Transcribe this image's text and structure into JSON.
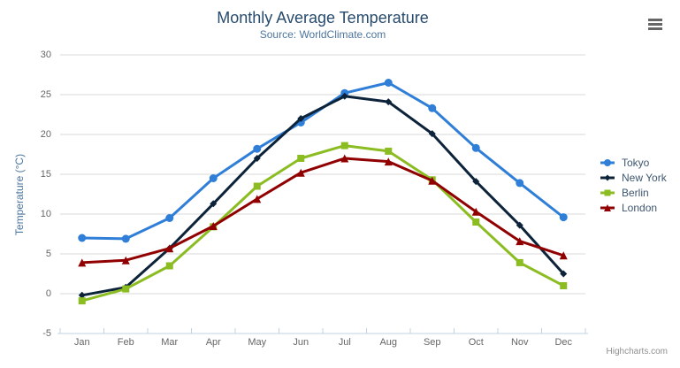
{
  "title": "Monthly Average Temperature",
  "subtitle": "Source: WorldClimate.com",
  "credits": "Highcharts.com",
  "export_menu_icon": "hamburger-icon",
  "chart_data": {
    "type": "line",
    "title": "Monthly Average Temperature",
    "subtitle": "Source: WorldClimate.com",
    "categories": [
      "Jan",
      "Feb",
      "Mar",
      "Apr",
      "May",
      "Jun",
      "Jul",
      "Aug",
      "Sep",
      "Oct",
      "Nov",
      "Dec"
    ],
    "series": [
      {
        "name": "Tokyo",
        "color": "#2f7ed8",
        "marker": "circle",
        "values": [
          7.0,
          6.9,
          9.5,
          14.5,
          18.2,
          21.5,
          25.2,
          26.5,
          23.3,
          18.3,
          13.9,
          9.6
        ]
      },
      {
        "name": "New York",
        "color": "#0d233a",
        "marker": "diamond",
        "values": [
          -0.2,
          0.8,
          5.7,
          11.3,
          17.0,
          22.0,
          24.8,
          24.1,
          20.1,
          14.1,
          8.6,
          2.5
        ]
      },
      {
        "name": "Berlin",
        "color": "#8bbc21",
        "marker": "square",
        "values": [
          -0.9,
          0.6,
          3.5,
          8.4,
          13.5,
          17.0,
          18.6,
          17.9,
          14.3,
          9.0,
          3.9,
          1.0
        ]
      },
      {
        "name": "London",
        "color": "#910000",
        "marker": "triangle",
        "values": [
          3.9,
          4.2,
          5.7,
          8.5,
          11.9,
          15.2,
          17.0,
          16.6,
          14.2,
          10.3,
          6.6,
          4.8
        ]
      }
    ],
    "xlabel": "",
    "ylabel": "Temperature (°C)",
    "ylim": [
      -5,
      30
    ],
    "ytick_interval": 5,
    "yticks": [
      -5,
      0,
      5,
      10,
      15,
      20,
      25,
      30
    ],
    "grid": true,
    "legend_position": "right"
  },
  "colors": {
    "title": "#274b6d",
    "subtitle": "#4d759e",
    "axis_label": "#666666",
    "axis_title": "#4d759e",
    "grid_line": "#d8d8d8",
    "axis_line": "#c0d0e0",
    "legend_text": "#3e576f",
    "credits": "#909090"
  }
}
